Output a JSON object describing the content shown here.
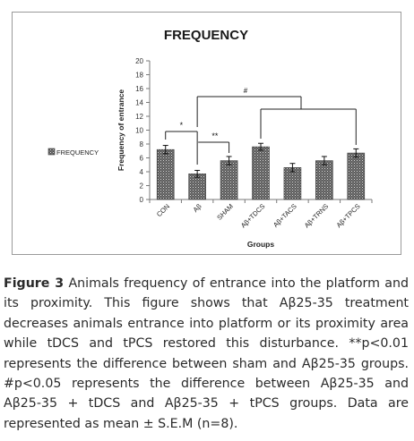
{
  "chart_data": {
    "type": "bar",
    "title": "FREQUENCY",
    "xlabel": "Groups",
    "ylabel": "Frequency of entrance",
    "legend": {
      "position": "left",
      "entries": [
        "FREQUENCY"
      ]
    },
    "categories": [
      "CON",
      "Aβ",
      "SHAM",
      "Aβ+TDCS",
      "Aβ+TACS",
      "Aβ+TRNS",
      "Aβ+TPCS"
    ],
    "series": [
      {
        "name": "FREQUENCY",
        "values": [
          7.2,
          3.7,
          5.6,
          7.6,
          4.6,
          5.6,
          6.7
        ],
        "errors": [
          0.6,
          0.5,
          0.6,
          0.5,
          0.6,
          0.6,
          0.6
        ]
      }
    ],
    "ylim": [
      0,
      20
    ],
    "yticks": [
      "0",
      "2",
      "4",
      "6",
      "8",
      "10",
      "12",
      "14",
      "16",
      "18",
      "20"
    ],
    "grid": false,
    "bar_pattern": "dotted-dark",
    "annotations": [
      "*",
      "**",
      "#"
    ]
  },
  "caption": {
    "label": "Figure 3",
    "text": " Animals frequency of entrance into the platform and its proximity. This figure shows that Aβ25-35 treatment decreases animals entrance into platform or its proximity area while tDCS and tPCS restored this disturbance. **p<0.01 represents the difference between sham and Aβ25-35 groups. #p<0.05 represents the difference between Aβ25-35 and Aβ25-35 + tDCS and Aβ25-35 + tPCS groups. Data are represented as mean ± S.E.M (n=8)."
  }
}
